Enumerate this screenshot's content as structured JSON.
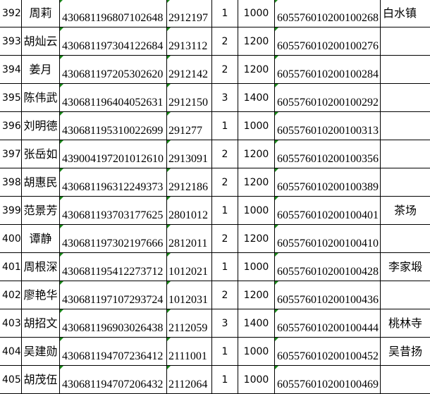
{
  "sheet": {
    "rows": [
      {
        "no": "392",
        "name": "周莉",
        "id": "430681196807102648",
        "code": "2912197",
        "count": "1",
        "amount": "1000",
        "account": "605576010200100268",
        "location": "白水镇",
        "loc_align": "left"
      },
      {
        "no": "393",
        "name": "胡灿云",
        "id": "430681197304122684",
        "code": "2913112",
        "count": "2",
        "amount": "1200",
        "account": "605576010200100276",
        "location": ""
      },
      {
        "no": "394",
        "name": "姜月",
        "id": "430681197205302620",
        "code": "2912142",
        "count": "2",
        "amount": "1200",
        "account": "605576010200100284",
        "location": ""
      },
      {
        "no": "395",
        "name": "陈伟武",
        "id": "430681196404052631",
        "code": "2912150",
        "count": "3",
        "amount": "1400",
        "account": "605576010200100292",
        "location": ""
      },
      {
        "no": "396",
        "name": "刘明德",
        "id": "430681195310022699",
        "code": "291277",
        "count": "1",
        "amount": "1000",
        "account": "605576010200100313",
        "location": ""
      },
      {
        "no": "397",
        "name": "张岳如",
        "id": "439004197201012610",
        "code": "2913091",
        "count": "2",
        "amount": "1200",
        "account": "605576010200100356",
        "location": ""
      },
      {
        "no": "398",
        "name": "胡惠民",
        "id": "430681196312249373",
        "code": "2912186",
        "count": "2",
        "amount": "1200",
        "account": "605576010200100389",
        "location": ""
      },
      {
        "no": "399",
        "name": "范景芳",
        "id": "430681193703177625",
        "code": "2801012",
        "count": "1",
        "amount": "1000",
        "account": "605576010200100401",
        "location": "茶场"
      },
      {
        "no": "400",
        "name": "谭静",
        "id": "430681197302197666",
        "code": "2812011",
        "count": "2",
        "amount": "1200",
        "account": "605576010200100410",
        "location": ""
      },
      {
        "no": "401",
        "name": "周根深",
        "id": "430681195412273712",
        "code": "1012021",
        "count": "1",
        "amount": "1000",
        "account": "605576010200100428",
        "location": "李家塅"
      },
      {
        "no": "402",
        "name": "廖艳华",
        "id": "430681197107293724",
        "code": "1012031",
        "count": "2",
        "amount": "1200",
        "account": "605576010200100436",
        "location": ""
      },
      {
        "no": "403",
        "name": "胡招文",
        "id": "430681196903026438",
        "code": "2112059",
        "count": "3",
        "amount": "1400",
        "account": "605576010200100444",
        "location": "桃林寺"
      },
      {
        "no": "404",
        "name": "吴建勋",
        "id": "430681194707236412",
        "code": "2111001",
        "count": "1",
        "amount": "1000",
        "account": "605576010200100452",
        "location": "吴昔扬"
      },
      {
        "no": "405",
        "name": "胡茂伍",
        "id": "430681194707206432",
        "code": "2112064",
        "count": "1",
        "amount": "1000",
        "account": "605576010200100469",
        "location": ""
      }
    ],
    "marker_color": "#1a8a1a"
  }
}
